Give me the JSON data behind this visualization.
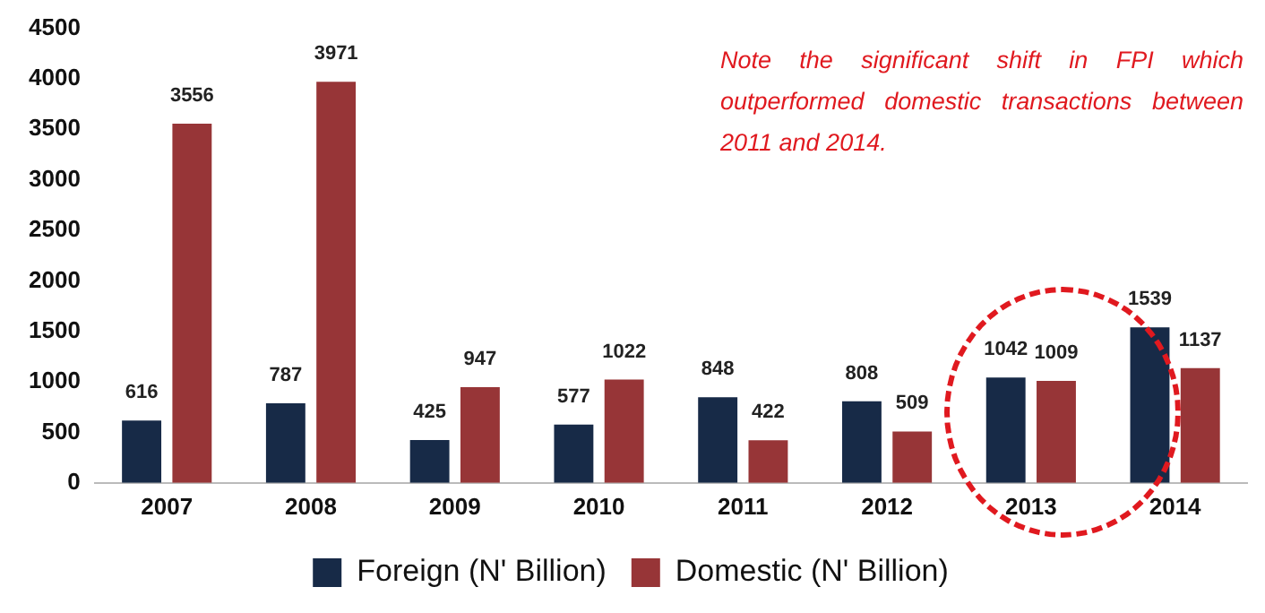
{
  "chart_data": {
    "type": "bar",
    "categories": [
      "2007",
      "2008",
      "2009",
      "2010",
      "2011",
      "2012",
      "2013",
      "2014"
    ],
    "series": [
      {
        "name": "Foreign (N' Billion)",
        "color": "#172a47",
        "values": [
          616,
          787,
          425,
          577,
          848,
          808,
          1042,
          1539
        ]
      },
      {
        "name": "Domestic (N' Billion)",
        "color": "#973537",
        "values": [
          3556,
          3971,
          947,
          1022,
          422,
          509,
          1009,
          1137
        ]
      }
    ],
    "ylim": [
      0,
      4500
    ],
    "yticks": [
      0,
      500,
      1000,
      1500,
      2000,
      2500,
      3000,
      3500,
      4000,
      4500
    ],
    "grid": false,
    "legend": "bottom",
    "data_labels": true,
    "annotations": [
      "Note the significant shift in FPI which outperformed domestic transactions between 2011 and 2014."
    ]
  }
}
